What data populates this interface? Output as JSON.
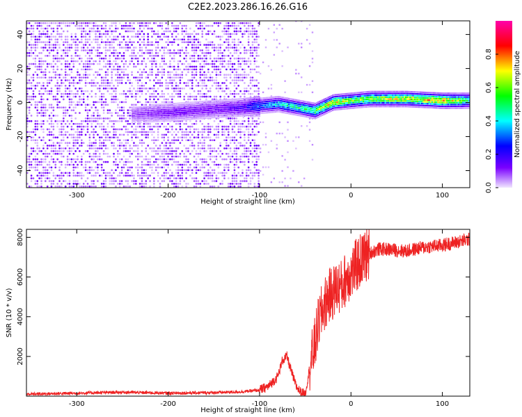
{
  "title": "C2E2.2023.286.16.26.G16",
  "chart_data": [
    {
      "type": "heatmap",
      "xlabel": "Height of straight line (km)",
      "ylabel": "Frequency (Hz)",
      "xlim": [
        -355,
        130
      ],
      "ylim": [
        -50,
        48
      ],
      "x_ticks": [
        -300,
        -200,
        -100,
        0,
        100
      ],
      "y_ticks": [
        -40,
        -20,
        0,
        20,
        40
      ],
      "colorbar": {
        "label": "Normalized spectral amplitude",
        "range": [
          0.0,
          1.0
        ],
        "ticks": [
          0.0,
          0.2,
          0.4,
          0.6,
          0.8
        ],
        "colors": [
          "#f0e6ff",
          "#7a00ff",
          "#0000ff",
          "#00ffff",
          "#00ff00",
          "#ffff00",
          "#ff0000",
          "#ff00aa"
        ]
      },
      "ridge": {
        "x": [
          -240,
          -200,
          -150,
          -120,
          -100,
          -80,
          -60,
          -40,
          -20,
          0,
          20,
          60,
          100,
          130
        ],
        "frequency": [
          -7,
          -6,
          -4,
          -3,
          -2,
          -1,
          -3,
          -5,
          0,
          1,
          2,
          2,
          1,
          1
        ],
        "amplitude": [
          0.1,
          0.15,
          0.15,
          0.2,
          0.35,
          0.45,
          0.5,
          0.6,
          0.75,
          0.6,
          0.65,
          0.7,
          0.8,
          0.5
        ]
      },
      "regions": {
        "noise_x_range": [
          -355,
          -100
        ],
        "sparse_x_range": [
          -100,
          -40
        ],
        "signal_x_range": [
          -100,
          130
        ]
      },
      "grid": false
    },
    {
      "type": "line",
      "xlabel": "Height of straight line (km)",
      "ylabel": "SNR (10 * v/v)",
      "xlim": [
        -355,
        130
      ],
      "ylim": [
        0,
        8400
      ],
      "x_ticks": [
        -300,
        -200,
        -100,
        0,
        100
      ],
      "y_ticks": [
        2000,
        4000,
        6000,
        8000
      ],
      "series": [
        {
          "color": "#ee2222",
          "x": [
            -355,
            -300,
            -250,
            -200,
            -150,
            -120,
            -100,
            -90,
            -80,
            -75,
            -70,
            -65,
            -60,
            -55,
            -50,
            -45,
            -40,
            -35,
            -30,
            -25,
            -20,
            -15,
            -10,
            -5,
            0,
            10,
            20,
            30,
            40,
            60,
            80,
            100,
            120,
            130
          ],
          "y": [
            100,
            150,
            200,
            150,
            180,
            220,
            300,
            500,
            1000,
            1800,
            2000,
            1200,
            500,
            200,
            100,
            1500,
            2500,
            3800,
            4500,
            5000,
            5200,
            5500,
            5500,
            6000,
            6200,
            6800,
            7200,
            7400,
            7400,
            7300,
            7500,
            7600,
            7800,
            7900
          ]
        }
      ],
      "grid": false
    }
  ]
}
